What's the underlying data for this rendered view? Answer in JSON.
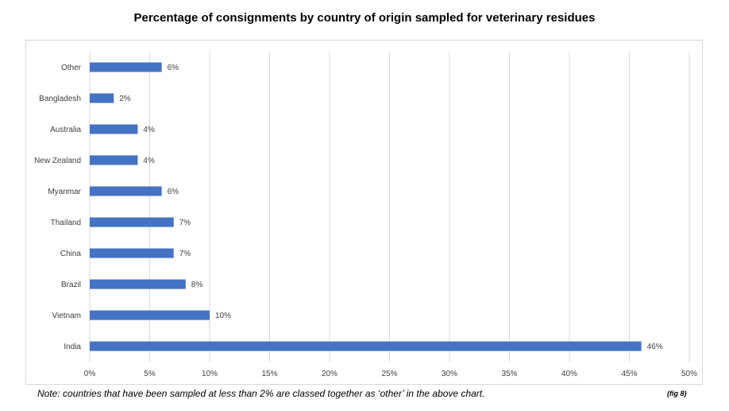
{
  "chart_data": {
    "type": "bar",
    "orientation": "horizontal",
    "title": "Percentage of consignments by country of origin sampled for veterinary residues",
    "categories": [
      "Other",
      "Bangladesh",
      "Australia",
      "New Zealand",
      "Myanmar",
      "Thailand",
      "China",
      "Brazil",
      "Vietnam",
      "India"
    ],
    "values": [
      6,
      2,
      4,
      4,
      6,
      7,
      7,
      8,
      10,
      46
    ],
    "data_labels": [
      "6%",
      "2%",
      "4%",
      "4%",
      "6%",
      "7%",
      "7%",
      "8%",
      "10%",
      "46%"
    ],
    "x_ticks": [
      "0%",
      "5%",
      "10%",
      "15%",
      "20%",
      "25%",
      "30%",
      "35%",
      "40%",
      "45%",
      "50%"
    ],
    "xlim": [
      0,
      50
    ],
    "grid": true,
    "series_color": "#4472C4"
  },
  "footer": {
    "note": "Note: countries that have been sampled at less than 2% are classed together as ‘other’ in the above chart.",
    "fig_label": "(fig 8)"
  }
}
